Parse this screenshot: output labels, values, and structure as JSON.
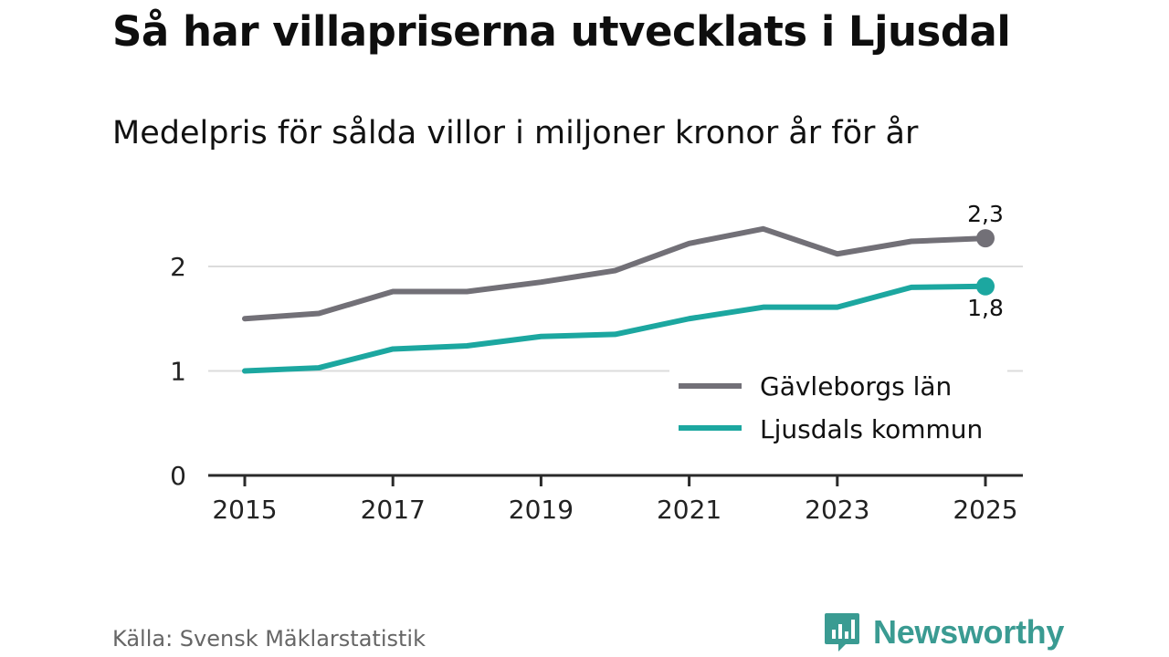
{
  "title": "Så har villapriserna utvecklats i Ljusdal",
  "subtitle": "Medelpris för sålda villor i miljoner kronor år för år",
  "source": "Källa: Svensk Mäklarstatistik",
  "brand": "Newsworthy",
  "colors": {
    "gavleborg": "#727077",
    "ljusdal": "#1ca7a0",
    "brand": "#3a9b92"
  },
  "chart_data": {
    "type": "line",
    "title": "Så har villapriserna utvecklats i Ljusdal",
    "subtitle": "Medelpris för sålda villor i miljoner kronor år för år",
    "xlabel": "",
    "ylabel": "",
    "x": [
      2015,
      2016,
      2017,
      2018,
      2019,
      2020,
      2021,
      2022,
      2023,
      2024,
      2025
    ],
    "x_ticks": [
      "2015",
      "2017",
      "2019",
      "2021",
      "2023",
      "2025"
    ],
    "y_ticks": [
      "0",
      "1",
      "2"
    ],
    "ylim": [
      0,
      2.5
    ],
    "grid": true,
    "legend_position": "bottom-right",
    "series": [
      {
        "name": "Gävleborgs län",
        "values": [
          1.5,
          1.55,
          1.76,
          1.76,
          1.85,
          1.96,
          2.22,
          2.36,
          2.12,
          2.24,
          2.27
        ],
        "end_label": "2,3"
      },
      {
        "name": "Ljusdals kommun",
        "values": [
          1.0,
          1.03,
          1.21,
          1.24,
          1.33,
          1.35,
          1.5,
          1.61,
          1.61,
          1.8,
          1.81
        ],
        "end_label": "1,8"
      }
    ]
  }
}
